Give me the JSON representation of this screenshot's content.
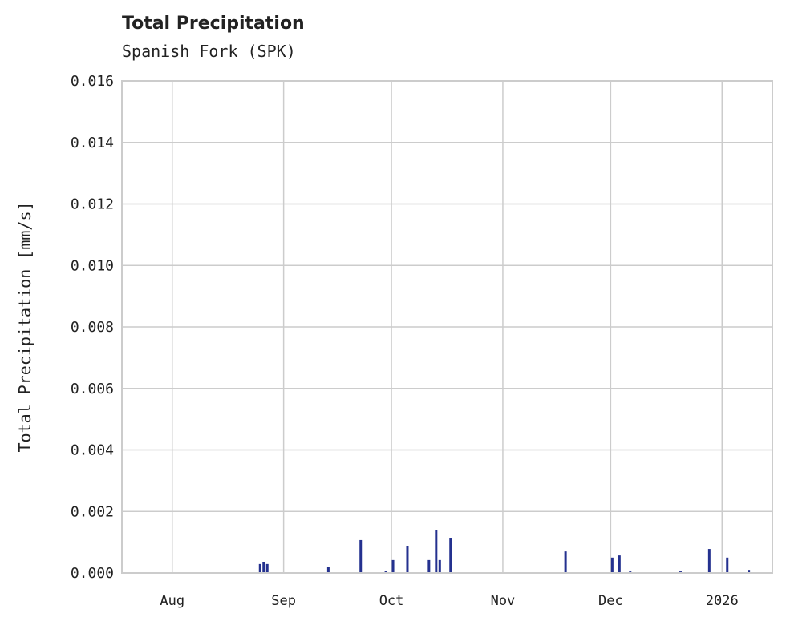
{
  "chart_data": {
    "type": "bar",
    "title": "Total Precipitation",
    "subtitle": "Spanish Fork (SPK)",
    "xlabel": "",
    "ylabel": "Total Precipitation [mm/s]",
    "xlim": [
      "2025-07-18",
      "2026-01-15"
    ],
    "ylim": [
      0,
      0.016
    ],
    "grid": true,
    "x_ticks": [
      {
        "date": "2025-08-01",
        "label": "Aug"
      },
      {
        "date": "2025-09-01",
        "label": "Sep"
      },
      {
        "date": "2025-10-01",
        "label": "Oct"
      },
      {
        "date": "2025-11-01",
        "label": "Nov"
      },
      {
        "date": "2025-12-01",
        "label": "Dec"
      },
      {
        "date": "2026-01-01",
        "label": "2026"
      }
    ],
    "y_ticks": [
      "0.000",
      "0.002",
      "0.004",
      "0.006",
      "0.008",
      "0.010",
      "0.012",
      "0.014",
      "0.016"
    ],
    "color": "#24318f",
    "points": [
      {
        "date": "2025-08-25",
        "value": 0.00029
      },
      {
        "date": "2025-08-26",
        "value": 0.00034
      },
      {
        "date": "2025-08-27",
        "value": 0.00029
      },
      {
        "date": "2025-09-13",
        "value": 0.0002
      },
      {
        "date": "2025-09-22",
        "value": 0.00107
      },
      {
        "date": "2025-09-29",
        "value": 7e-05
      },
      {
        "date": "2025-10-01",
        "value": 0.00042
      },
      {
        "date": "2025-10-05",
        "value": 0.00086
      },
      {
        "date": "2025-10-11",
        "value": 0.00042
      },
      {
        "date": "2025-10-13",
        "value": 0.0014
      },
      {
        "date": "2025-10-14",
        "value": 0.00042
      },
      {
        "date": "2025-10-17",
        "value": 0.00112
      },
      {
        "date": "2025-11-18",
        "value": 0.0007
      },
      {
        "date": "2025-12-01",
        "value": 0.0005
      },
      {
        "date": "2025-12-03",
        "value": 0.00057
      },
      {
        "date": "2025-12-06",
        "value": 5e-05
      },
      {
        "date": "2025-12-20",
        "value": 5e-05
      },
      {
        "date": "2025-12-28",
        "value": 0.00078
      },
      {
        "date": "2026-01-02",
        "value": 0.0005
      },
      {
        "date": "2026-01-08",
        "value": 0.0001
      }
    ]
  }
}
